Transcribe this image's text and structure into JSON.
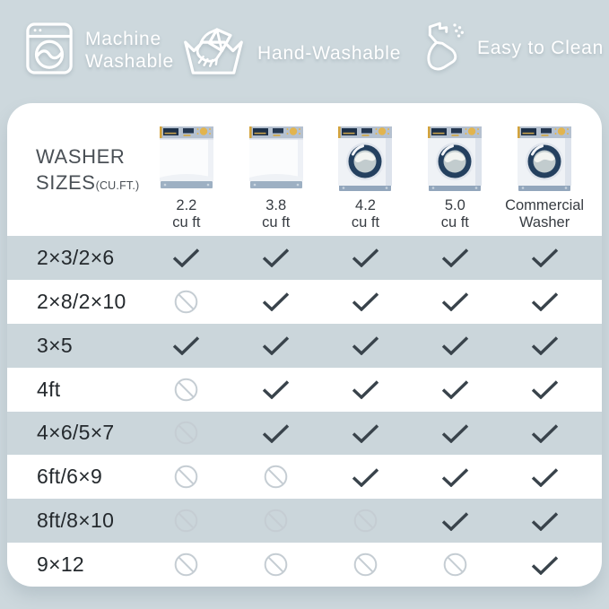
{
  "features": [
    {
      "icon": "machine-washable-icon",
      "label": "Machine Washable"
    },
    {
      "icon": "hand-washable-icon",
      "label": "Hand-Washable"
    },
    {
      "icon": "easy-to-clean-icon",
      "label": "Easy to Clean"
    }
  ],
  "table": {
    "corner_title": {
      "line1": "WASHER",
      "line2": "SIZES",
      "suffix": "(CU.FT.)"
    },
    "columns": [
      {
        "washer_type": "top-load-washer-icon",
        "label_line1": "2.2",
        "label_line2": "cu ft"
      },
      {
        "washer_type": "top-load-washer-icon",
        "label_line1": "3.8",
        "label_line2": "cu ft"
      },
      {
        "washer_type": "front-load-washer-icon",
        "label_line1": "4.2",
        "label_line2": "cu ft"
      },
      {
        "washer_type": "front-load-washer-icon",
        "label_line1": "5.0",
        "label_line2": "cu ft"
      },
      {
        "washer_type": "front-load-washer-icon",
        "label_line1": "Commercial",
        "label_line2": "Washer"
      }
    ],
    "rows": [
      {
        "label": "2×3/2×6",
        "cells": [
          "check",
          "check",
          "check",
          "check",
          "check"
        ]
      },
      {
        "label": "2×8/2×10",
        "cells": [
          "no",
          "check",
          "check",
          "check",
          "check"
        ]
      },
      {
        "label": "3×5",
        "cells": [
          "check",
          "check",
          "check",
          "check",
          "check"
        ]
      },
      {
        "label": "4ft",
        "cells": [
          "no",
          "check",
          "check",
          "check",
          "check"
        ]
      },
      {
        "label": "4×6/5×7",
        "cells": [
          "no",
          "check",
          "check",
          "check",
          "check"
        ]
      },
      {
        "label": "6ft/6×9",
        "cells": [
          "no",
          "no",
          "check",
          "check",
          "check"
        ]
      },
      {
        "label": "8ft/8×10",
        "cells": [
          "no",
          "no",
          "no",
          "check",
          "check"
        ]
      },
      {
        "label": "9×12",
        "cells": [
          "no",
          "no",
          "no",
          "no",
          "check"
        ]
      }
    ]
  },
  "colors": {
    "page_background": "#cdd8dd",
    "panel_background": "#ffffff",
    "stripe_row": "#cbd6db",
    "check_mark": "#39434b",
    "prohibited_icon": "#c5cdd3",
    "title_text": "#4a5056",
    "row_label_text": "#24292d",
    "feature_text": "#ffffff",
    "washer_navy": "#24405f",
    "washer_gold": "#e2b44e"
  },
  "chart_data": {
    "type": "table",
    "title": "WASHER SIZES (CU.FT.)",
    "header_features": [
      "Machine Washable",
      "Hand-Washable",
      "Easy to Clean"
    ],
    "columns": [
      "2.2 cu ft",
      "3.8 cu ft",
      "4.2 cu ft",
      "5.0 cu ft",
      "Commercial Washer"
    ],
    "row_labels": [
      "2×3/2×6",
      "2×8/2×10",
      "3×5",
      "4ft",
      "4×6/5×7",
      "6ft/6×9",
      "8ft/8×10",
      "9×12"
    ],
    "values": [
      [
        "check",
        "check",
        "check",
        "check",
        "check"
      ],
      [
        "no",
        "check",
        "check",
        "check",
        "check"
      ],
      [
        "check",
        "check",
        "check",
        "check",
        "check"
      ],
      [
        "no",
        "check",
        "check",
        "check",
        "check"
      ],
      [
        "no",
        "check",
        "check",
        "check",
        "check"
      ],
      [
        "no",
        "no",
        "check",
        "check",
        "check"
      ],
      [
        "no",
        "no",
        "no",
        "check",
        "check"
      ],
      [
        "no",
        "no",
        "no",
        "no",
        "check"
      ]
    ],
    "cell_symbols": {
      "check": "check-icon",
      "no": "prohibited-icon"
    }
  }
}
